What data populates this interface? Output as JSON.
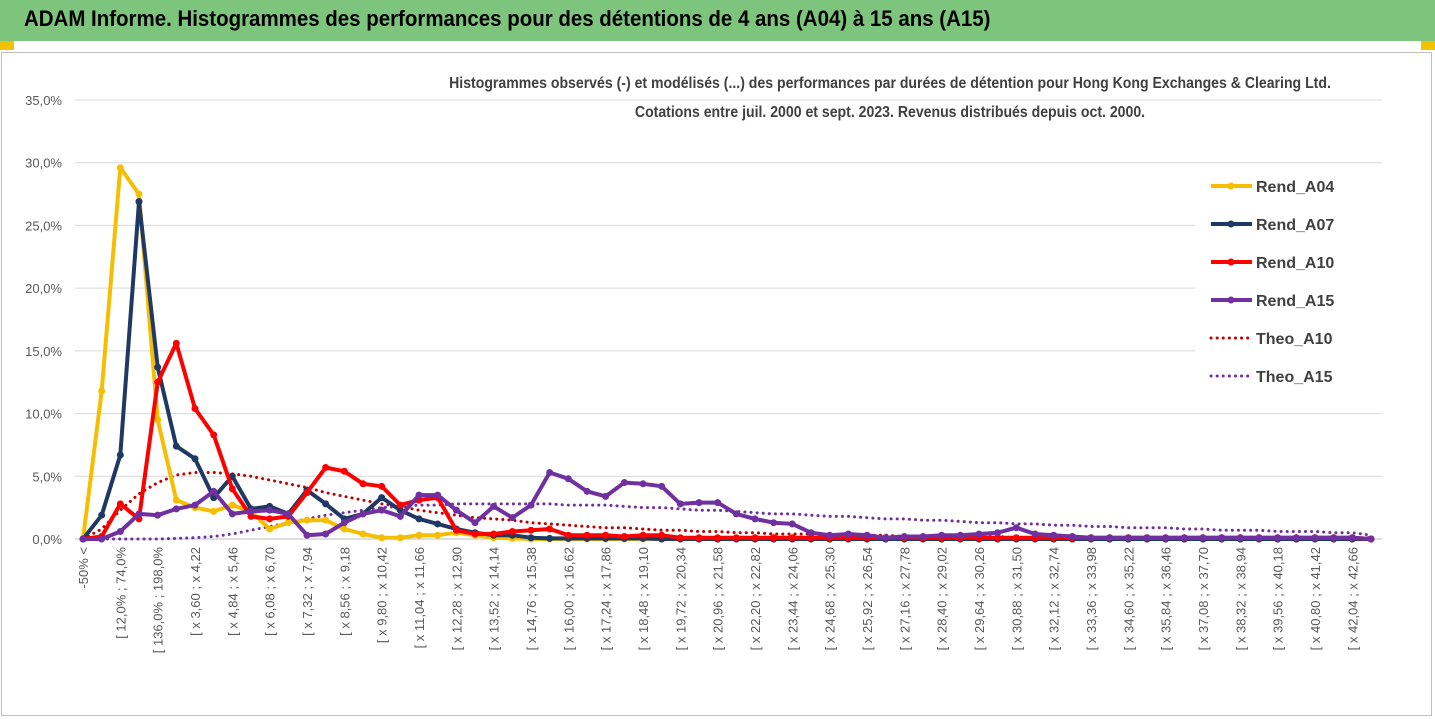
{
  "header": {
    "title": "ADAM Informe. Histogrammes des performances pour des détentions de 4 ans (A04) à 15 ans (A15)"
  },
  "chart_data": {
    "type": "line",
    "title": "Histogrammes observés (-) et modélisés (...) des performances par durées de détention pour Hong Kong Exchanges & Clearing Ltd.",
    "subtitle": "Cotations entre juil. 2000 et sept. 2023. Revenus distribués depuis oct. 2000.",
    "xlabel": "",
    "ylabel": "",
    "ylim": [
      0,
      35
    ],
    "yticks": [
      "0,0%",
      "5,0%",
      "10,0%",
      "15,0%",
      "20,0%",
      "25,0%",
      "30,0%",
      "35,0%"
    ],
    "grid": true,
    "legend_position": "right",
    "categories": [
      "-50% <",
      "",
      "[ 12,0% ; 74,0%",
      "",
      "[ 136,0% ; 198,0%",
      "",
      "[ x 3,60 ; x 4,22",
      "",
      "[ x 4,84 ; x 5,46",
      "",
      "[ x 6,08 ; x 6,70",
      "",
      "[ x 7,32 ; x 7,94",
      "",
      "[ x 8,56 ; x 9,18",
      "",
      "[ x 9,80 ; x 10,42",
      "",
      "[ x 11,04 ; x 11,66",
      "",
      "[ x 12,28 ; x 12,90",
      "",
      "[ x 13,52 ; x 14,14",
      "",
      "[ x 14,76 ; x 15,38",
      "",
      "[ x 16,00 ; x 16,62",
      "",
      "[ x 17,24 ; x 17,86",
      "",
      "[ x 18,48 ; x 19,10",
      "",
      "[ x 19,72 ; x 20,34",
      "",
      "[ x 20,96 ; x 21,58",
      "",
      "[ x 22,20 ; x 22,82",
      "",
      "[ x 23,44 ; x 24,06",
      "",
      "[ x 24,68 ; x 25,30",
      "",
      "[ x 25,92 ; x 26,54",
      "",
      "[ x 27,16 ; x 27,78",
      "",
      "[ x 28,40 ; x 29,02",
      "",
      "[ x 29,64 ; x 30,26",
      "",
      "[ x 30,88 ; x 31,50",
      "",
      "[ x 32,12 ; x 32,74",
      "",
      "[ x 33,36 ; x 33,98",
      "",
      "[ x 34,60 ; x 35,22",
      "",
      "[ x 35,84 ; x 36,46",
      "",
      "[ x 37,08 ; x 37,70",
      "",
      "[ x 38,32 ; x 38,94",
      "",
      "[ x 39,56 ; x 40,18",
      "",
      "[ x 40,80 ; x 41,42",
      "",
      "[ x 42,04 ; x 42,66",
      ""
    ],
    "series": [
      {
        "name": "Rend_A04",
        "style": "solid",
        "color": "#f5be00",
        "values": [
          0,
          11.8,
          29.6,
          27.5,
          9.5,
          3.1,
          2.5,
          2.2,
          2.7,
          2.2,
          0.8,
          1.3,
          1.5,
          1.5,
          0.8,
          0.4,
          0.1,
          0.1,
          0.3,
          0.3,
          0.5,
          0.3,
          0.1,
          0.05,
          0,
          0,
          0,
          0,
          0,
          0,
          0,
          0,
          0,
          0,
          0,
          0,
          0,
          0,
          0,
          0,
          0,
          0,
          0,
          0,
          0,
          0,
          0,
          0,
          0,
          0,
          0,
          0,
          0,
          0,
          0,
          0,
          0,
          0,
          0,
          0,
          0,
          0,
          0,
          0,
          0,
          0,
          0,
          0,
          0,
          0
        ]
      },
      {
        "name": "Rend_A07",
        "style": "solid",
        "color": "#203864",
        "values": [
          0,
          1.9,
          6.7,
          26.9,
          13.7,
          7.4,
          6.4,
          3.3,
          5.0,
          2.4,
          2.6,
          2.0,
          3.9,
          2.8,
          1.6,
          2.0,
          3.3,
          2.3,
          1.6,
          1.2,
          0.8,
          0.5,
          0.3,
          0.3,
          0.1,
          0.05,
          0.05,
          0.05,
          0.05,
          0.05,
          0.05,
          0,
          0,
          0,
          0,
          0,
          0,
          0,
          0,
          0,
          0,
          0,
          0,
          0,
          0,
          0,
          0,
          0,
          0,
          0,
          0,
          0,
          0,
          0,
          0,
          0,
          0,
          0,
          0,
          0,
          0,
          0,
          0,
          0,
          0,
          0,
          0,
          0,
          0,
          0
        ]
      },
      {
        "name": "Rend_A10",
        "style": "solid",
        "color": "#ff0000",
        "values": [
          0,
          0.2,
          2.8,
          1.6,
          12.5,
          15.6,
          10.4,
          8.3,
          4.0,
          1.8,
          1.6,
          1.8,
          3.7,
          5.7,
          5.4,
          4.4,
          4.2,
          2.7,
          3.1,
          3.3,
          0.7,
          0.4,
          0.4,
          0.6,
          0.7,
          0.8,
          0.3,
          0.3,
          0.3,
          0.2,
          0.3,
          0.3,
          0.1,
          0.1,
          0.1,
          0.1,
          0.1,
          0.1,
          0.1,
          0.1,
          0.1,
          0.1,
          0.1,
          0.1,
          0.1,
          0.1,
          0.1,
          0.1,
          0.1,
          0.1,
          0.1,
          0.1,
          0.1,
          0.1,
          0.1,
          0.1,
          0.1,
          0.1,
          0.1,
          0.1,
          0.1,
          0.1,
          0.1,
          0.1,
          0.1,
          0.1,
          0.1,
          0.1,
          0.1,
          0
        ]
      },
      {
        "name": "Rend_A15",
        "style": "solid",
        "color": "#7030a0",
        "values": [
          0,
          0,
          0.6,
          2.0,
          1.9,
          2.4,
          2.7,
          3.8,
          2.0,
          2.2,
          2.3,
          2.0,
          0.3,
          0.4,
          1.3,
          2.0,
          2.3,
          1.8,
          3.5,
          3.5,
          2.3,
          1.3,
          2.6,
          1.7,
          2.7,
          5.3,
          4.8,
          3.8,
          3.4,
          4.5,
          4.4,
          4.2,
          2.8,
          2.9,
          2.9,
          2.0,
          1.6,
          1.3,
          1.2,
          0.5,
          0.3,
          0.4,
          0.3,
          0.1,
          0.2,
          0.2,
          0.3,
          0.3,
          0.4,
          0.5,
          0.9,
          0.4,
          0.3,
          0.2,
          0.1,
          0.1,
          0.1,
          0.1,
          0.1,
          0.1,
          0.1,
          0.1,
          0.1,
          0.1,
          0.1,
          0.1,
          0.1,
          0.1,
          0.1,
          0
        ]
      },
      {
        "name": "Theo_A10",
        "style": "dotted",
        "color": "#c00000",
        "values": [
          0,
          0.8,
          2.3,
          3.6,
          4.5,
          5.1,
          5.3,
          5.3,
          5.2,
          5.0,
          4.7,
          4.4,
          4.1,
          3.7,
          3.4,
          3.1,
          2.8,
          2.6,
          2.3,
          2.1,
          1.9,
          1.7,
          1.6,
          1.5,
          1.3,
          1.2,
          1.1,
          1.0,
          0.9,
          0.9,
          0.8,
          0.7,
          0.7,
          0.6,
          0.6,
          0.5,
          0.5,
          0.4,
          0.4,
          0.4,
          0.3,
          0.3,
          0.3,
          0.3,
          0.2,
          0.2,
          0.2,
          0.2,
          0.2,
          0.2,
          0.1,
          0.1,
          0.1,
          0.1,
          0.1,
          0.1,
          0.1,
          0.1,
          0.1,
          0.1,
          0.1,
          0.1,
          0.1,
          0.1,
          0.1,
          0.1,
          0.1,
          0.1,
          0.1,
          0.1
        ]
      },
      {
        "name": "Theo_A15",
        "style": "dotted",
        "color": "#7030a0",
        "values": [
          0,
          0,
          0,
          0,
          0,
          0.05,
          0.1,
          0.2,
          0.4,
          0.7,
          1.0,
          1.3,
          1.6,
          1.9,
          2.1,
          2.3,
          2.5,
          2.6,
          2.7,
          2.7,
          2.8,
          2.8,
          2.8,
          2.8,
          2.8,
          2.8,
          2.7,
          2.7,
          2.7,
          2.6,
          2.5,
          2.5,
          2.4,
          2.3,
          2.3,
          2.2,
          2.1,
          2.0,
          2.0,
          1.9,
          1.8,
          1.8,
          1.7,
          1.6,
          1.6,
          1.5,
          1.5,
          1.4,
          1.3,
          1.3,
          1.2,
          1.2,
          1.1,
          1.1,
          1.0,
          1.0,
          0.9,
          0.9,
          0.9,
          0.8,
          0.8,
          0.7,
          0.7,
          0.7,
          0.6,
          0.6,
          0.6,
          0.5,
          0.5,
          0.3
        ]
      }
    ]
  }
}
